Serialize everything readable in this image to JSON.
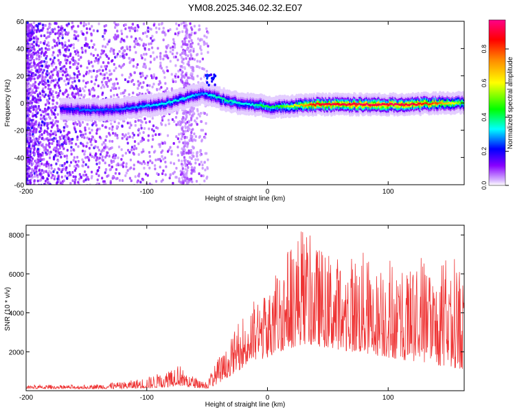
{
  "figure": {
    "title": "YM08.2025.346.02.32.E07"
  },
  "chart_data": [
    {
      "type": "heatmap",
      "title": "YM08.2025.346.02.32.E07",
      "xlabel": "Height of straight line (km)",
      "ylabel": "Frequency (Hz)",
      "xlim": [
        -200,
        163
      ],
      "ylim": [
        -60,
        60
      ],
      "x_ticks": [
        -200,
        -100,
        0,
        100
      ],
      "y_ticks": [
        -60,
        -40,
        -20,
        0,
        20,
        40,
        60
      ],
      "colorbar": {
        "label": "Normalized spectral amplitude",
        "range": [
          0.0,
          0.97
        ],
        "ticks": [
          0.0,
          0.2,
          0.4,
          0.6,
          0.8
        ],
        "tick_labels": [
          "0.0",
          "0.2",
          "0.4",
          "0.6",
          "0.8"
        ],
        "colormap": [
          "#ffffff",
          "#8800ff",
          "#0000ff",
          "#00ffff",
          "#00ff00",
          "#ffff00",
          "#ff8800",
          "#ff0000",
          "#ff0088"
        ]
      },
      "ridge": {
        "x": [
          -172,
          -150,
          -130,
          -110,
          -90,
          -75,
          -65,
          -55,
          -45,
          -35,
          -25,
          -15,
          -5,
          5,
          20,
          40,
          60,
          80,
          100,
          120,
          140,
          163
        ],
        "frequency": [
          -3,
          -4,
          -4,
          -2,
          0,
          3,
          6,
          8,
          6,
          3,
          1,
          0,
          -1,
          -2,
          -1,
          0,
          0,
          0,
          0,
          0,
          1,
          1
        ],
        "amplitude": [
          0.22,
          0.28,
          0.26,
          0.3,
          0.34,
          0.36,
          0.35,
          0.28,
          0.38,
          0.4,
          0.36,
          0.34,
          0.45,
          0.42,
          0.6,
          0.92,
          0.94,
          0.95,
          0.96,
          0.94,
          0.8,
          0.5
        ]
      }
    },
    {
      "type": "line",
      "xlabel": "Height of straight line (km)",
      "ylabel": "SNR (10 * v/v)",
      "xlim": [
        -200,
        163
      ],
      "ylim": [
        0,
        8500
      ],
      "x_ticks": [
        -200,
        -100,
        0,
        100
      ],
      "y_ticks": [
        2000,
        4000,
        6000,
        8000
      ],
      "line_color": "#ee3333",
      "series": [
        {
          "name": "SNR",
          "envelope": {
            "x": [
              -200,
              -150,
              -120,
              -100,
              -90,
              -80,
              -75,
              -70,
              -60,
              -50,
              -40,
              -35,
              -30,
              -20,
              -10,
              0,
              10,
              20,
              30,
              40,
              50,
              60,
              70,
              80,
              90,
              100,
              110,
              120,
              130,
              140,
              150,
              163
            ],
            "peak": [
              300,
              300,
              450,
              700,
              900,
              1100,
              1600,
              1100,
              700,
              500,
              1800,
              2000,
              2700,
              4000,
              4800,
              5000,
              6600,
              7800,
              8500,
              7500,
              7200,
              6900,
              7000,
              7200,
              6200,
              7100,
              6400,
              6100,
              7100,
              6000,
              7400,
              6100
            ],
            "trough": [
              100,
              100,
              100,
              120,
              150,
              200,
              300,
              200,
              150,
              100,
              400,
              600,
              800,
              1200,
              1500,
              1700,
              2000,
              2200,
              2400,
              2300,
              2200,
              2100,
              2000,
              1900,
              1800,
              1700,
              1600,
              1500,
              1400,
              1300,
              1200,
              1100
            ]
          }
        }
      ]
    }
  ]
}
